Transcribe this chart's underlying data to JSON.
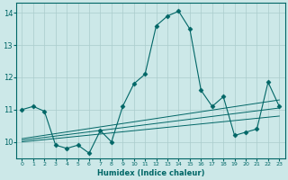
{
  "title": "",
  "xlabel": "Humidex (Indice chaleur)",
  "xlim": [
    -0.5,
    23.5
  ],
  "ylim": [
    9.5,
    14.3
  ],
  "yticks": [
    10,
    11,
    12,
    13,
    14
  ],
  "xticks": [
    0,
    1,
    2,
    3,
    4,
    5,
    6,
    7,
    8,
    9,
    10,
    11,
    12,
    13,
    14,
    15,
    16,
    17,
    18,
    19,
    20,
    21,
    22,
    23
  ],
  "bg_color": "#cce8e8",
  "line_color": "#006666",
  "grid_color": "#aacccc",
  "series_main": {
    "x": [
      0,
      1,
      2,
      3,
      4,
      5,
      6,
      7,
      8,
      9,
      10,
      11,
      12,
      13,
      14,
      15,
      16,
      17,
      18,
      19,
      20,
      21,
      22,
      23
    ],
    "y": [
      11.0,
      11.1,
      10.95,
      9.9,
      9.8,
      9.9,
      9.65,
      10.35,
      10.0,
      11.1,
      11.8,
      12.1,
      13.6,
      13.9,
      14.05,
      13.5,
      11.6,
      11.1,
      11.4,
      10.2,
      10.3,
      10.4,
      11.85,
      11.1
    ]
  },
  "series_linear": [
    {
      "x": [
        0,
        23
      ],
      "y": [
        10.0,
        10.8
      ]
    },
    {
      "x": [
        0,
        23
      ],
      "y": [
        10.05,
        11.05
      ]
    },
    {
      "x": [
        0,
        23
      ],
      "y": [
        10.1,
        11.3
      ]
    }
  ]
}
